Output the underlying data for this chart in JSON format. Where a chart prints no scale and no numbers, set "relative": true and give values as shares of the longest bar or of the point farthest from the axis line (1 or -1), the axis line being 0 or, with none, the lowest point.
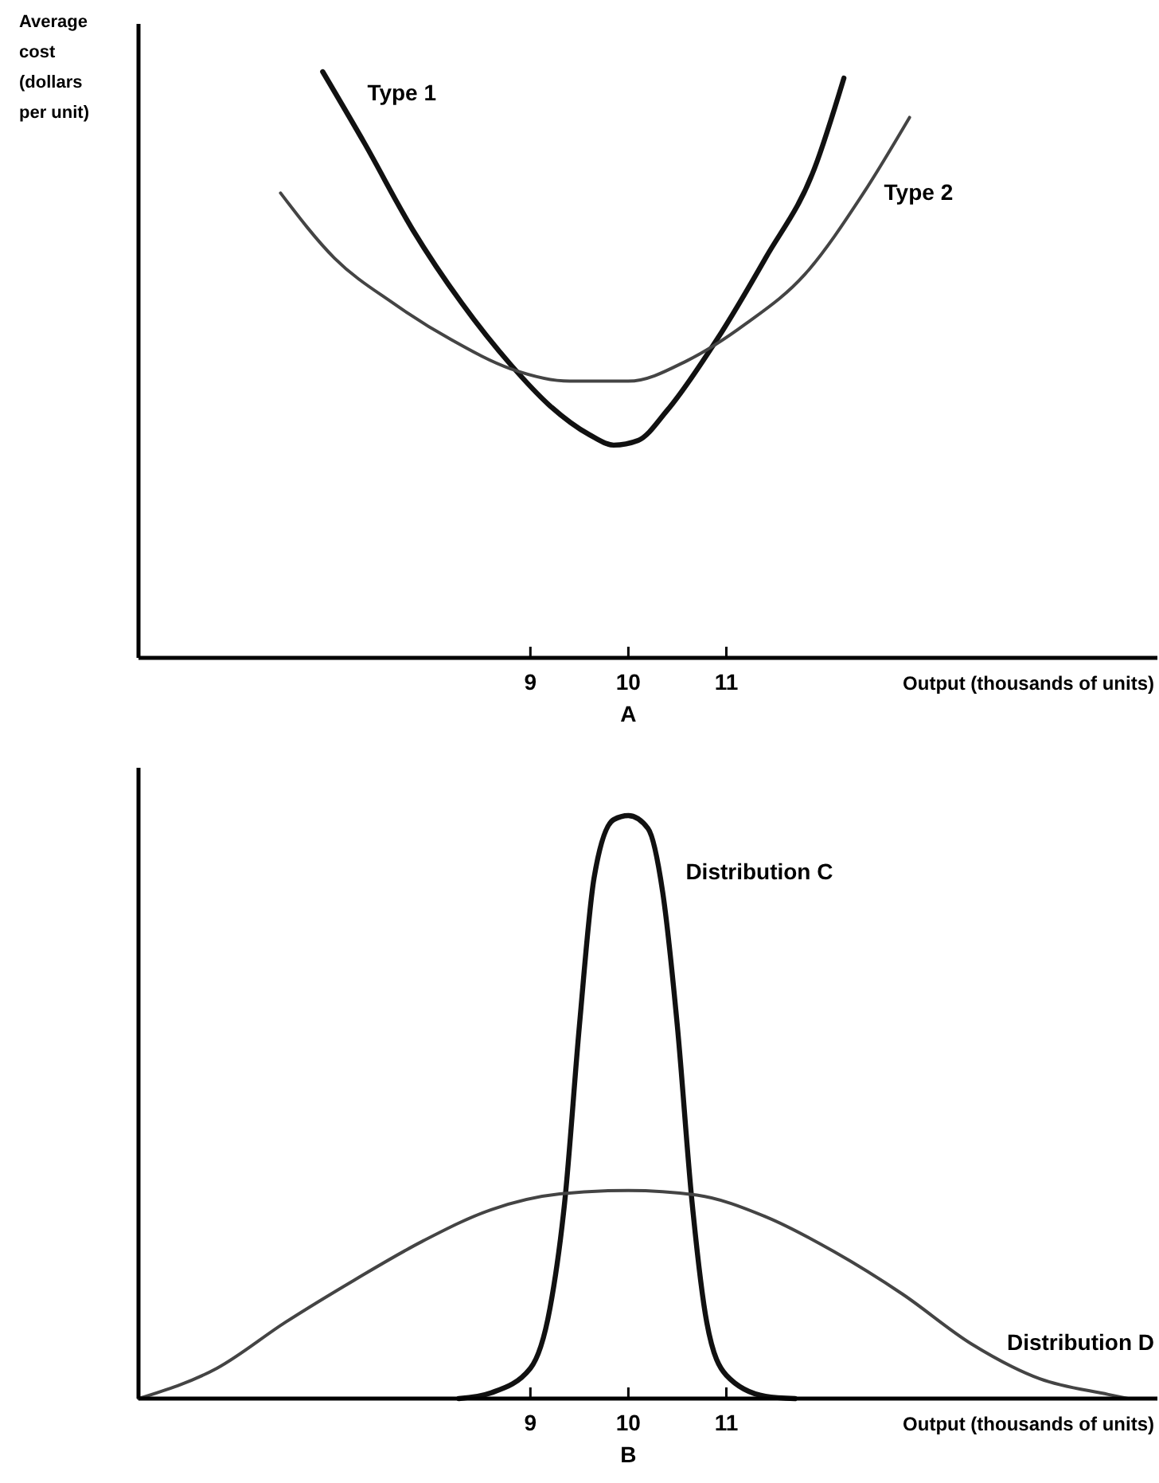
{
  "chart_data": [
    {
      "type": "line",
      "title": "A",
      "xlabel": "Output (thousands of units)",
      "ylabel": "Average cost (dollars per unit)",
      "relative": true,
      "xlim": [
        5,
        15.4
      ],
      "xticks": [
        9,
        10,
        11
      ],
      "grid": false,
      "series": [
        {
          "name": "Type 1",
          "color": "#111111",
          "x": [
            6.88,
            7.31,
            7.8,
            8.3,
            8.8,
            9.2,
            9.6,
            9.85,
            10.1,
            10.4,
            10.9,
            11.4,
            11.9,
            12.2
          ],
          "values": [
            1.0,
            0.877,
            0.73,
            0.605,
            0.5,
            0.43,
            0.381,
            0.363,
            0.371,
            0.423,
            0.542,
            0.682,
            0.835,
            0.989
          ]
        },
        {
          "name": "Type 2",
          "color": "#444444",
          "x": [
            6.45,
            7.0,
            7.6,
            8.2,
            8.8,
            9.4,
            10.0,
            10.6,
            11.2,
            11.8,
            12.4,
            12.87
          ],
          "values": [
            0.793,
            0.682,
            0.605,
            0.542,
            0.493,
            0.472,
            0.472,
            0.507,
            0.57,
            0.654,
            0.793,
            0.922
          ]
        }
      ]
    },
    {
      "type": "line",
      "title": "B",
      "xlabel": "Output (thousands of units)",
      "relative": true,
      "xlim": [
        5,
        15.4
      ],
      "xticks": [
        9,
        10,
        11
      ],
      "grid": false,
      "series": [
        {
          "name": "Distribution C",
          "color": "#111111",
          "x": [
            8.27,
            8.6,
            9.0,
            9.2,
            9.35,
            9.5,
            9.65,
            9.85,
            10.0,
            10.2,
            10.35,
            10.5,
            10.65,
            10.8,
            11.0,
            11.4,
            11.7
          ],
          "values": [
            0,
            0.01,
            0.052,
            0.155,
            0.337,
            0.639,
            0.893,
            0.993,
            1.0,
            0.978,
            0.869,
            0.639,
            0.337,
            0.131,
            0.04,
            0.004,
            0
          ]
        },
        {
          "name": "Distribution D",
          "color": "#444444",
          "x": [
            5.0,
            5.8,
            6.5,
            7.2,
            7.9,
            8.6,
            9.3,
            10.0,
            10.7,
            11.4,
            12.1,
            12.8,
            13.5,
            14.2,
            14.9,
            15.1
          ],
          "values": [
            0,
            0.052,
            0.131,
            0.203,
            0.27,
            0.324,
            0.351,
            0.357,
            0.349,
            0.312,
            0.252,
            0.179,
            0.094,
            0.034,
            0.007,
            0
          ]
        }
      ]
    }
  ]
}
